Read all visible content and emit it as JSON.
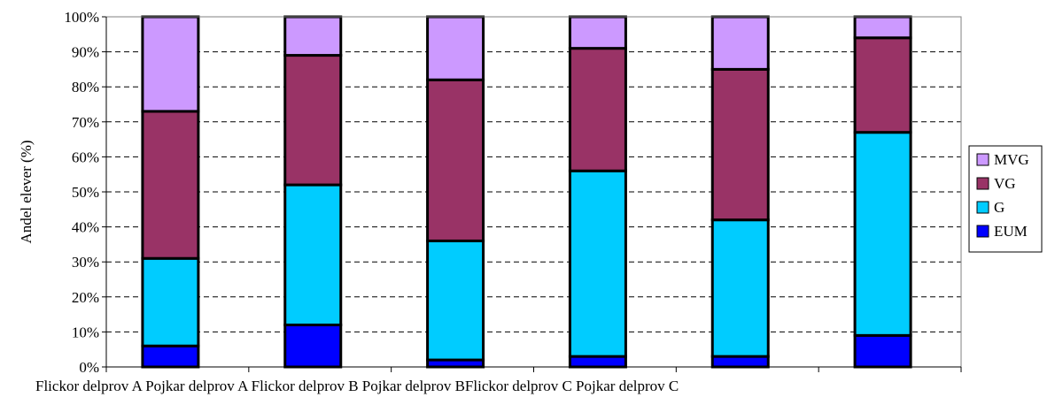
{
  "chart_data": {
    "type": "bar",
    "stacked": true,
    "title": "",
    "xlabel": "",
    "ylabel": "Andel elever (%)",
    "ylim": [
      0,
      100
    ],
    "ytick_values": [
      0,
      10,
      20,
      30,
      40,
      50,
      60,
      70,
      80,
      90,
      100
    ],
    "ytick_labels": [
      "0%",
      "10%",
      "20%",
      "30%",
      "40%",
      "50%",
      "60%",
      "70%",
      "80%",
      "90%",
      "100%"
    ],
    "categories": [
      "Flickor delprov A",
      "Pojkar delprov A",
      "Flickor delprov B",
      "Pojkar delprov B",
      "Flickor delprov C",
      "Pojkar delprov C"
    ],
    "category_axis_text": "Flickor delprov A Pojkar delprov A Flickor delprov B Pojkar delprov BFlickor delprov C Pojkar delprov C",
    "grid": "horizontal dashed",
    "legend_position": "right",
    "series": [
      {
        "name": "EUM",
        "color": "#0000ff",
        "values": [
          6,
          12,
          2,
          3,
          3,
          9
        ]
      },
      {
        "name": "G",
        "color": "#00ccff",
        "values": [
          25,
          40,
          34,
          53,
          39,
          58
        ]
      },
      {
        "name": "VG",
        "color": "#993366",
        "values": [
          42,
          37,
          46,
          35,
          43,
          27
        ]
      },
      {
        "name": "MVG",
        "color": "#cc99ff",
        "values": [
          27,
          11,
          18,
          9,
          15,
          6
        ]
      }
    ],
    "legend_order": [
      "MVG",
      "VG",
      "G",
      "EUM"
    ]
  }
}
